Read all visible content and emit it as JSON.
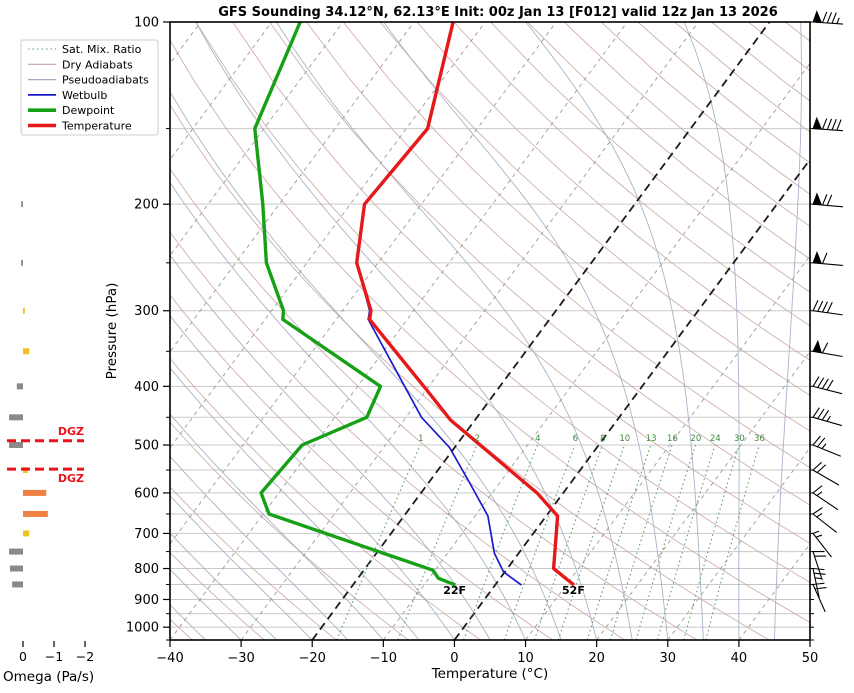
{
  "title": "GFS Sounding 34.12°N, 62.13°E Init: 00z Jan 13 [F012] valid 12z Jan 13 2026",
  "axes": {
    "x_label": "Temperature (°C)",
    "y_label": "Pressure (hPa)"
  },
  "legend": [
    {
      "label": "Sat. Mix. Ratio",
      "color": "#5a9c6e",
      "width": 1.1,
      "dash": "1.5 3"
    },
    {
      "label": "Dry Adiabats",
      "color": "#c9a0a0",
      "width": 1.2,
      "dash": ""
    },
    {
      "label": "Pseudoadiabats",
      "color": "#a3a8c4",
      "width": 1.2,
      "dash": ""
    },
    {
      "label": "Wetbulb",
      "color": "#1a1acd",
      "width": 1.7,
      "dash": ""
    },
    {
      "label": "Dewpoint",
      "color": "#15a015",
      "width": 3.6,
      "dash": ""
    },
    {
      "label": "Temperature",
      "color": "#e51919",
      "width": 3.6,
      "dash": ""
    }
  ],
  "chart_data": {
    "type": "line",
    "subtype": "skew-t-log-p sounding",
    "axes": {
      "t_min": -40,
      "t_max": 50,
      "t_tick_step": 10,
      "p_min": 100,
      "p_max": 1050,
      "skew": 0.74,
      "pressure_major_ticks": [
        100,
        200,
        300,
        400,
        500,
        600,
        700,
        800,
        900,
        1000
      ],
      "pressure_minor_ticks": [
        150,
        250,
        350,
        450,
        550,
        650,
        750,
        850,
        950,
        1050
      ],
      "temperature_ticks": [
        -40,
        -30,
        -20,
        -10,
        0,
        10,
        20,
        30,
        40,
        50
      ],
      "gridline_pressures": [
        150,
        200,
        250,
        300,
        350,
        400,
        450,
        500,
        550,
        600,
        650,
        700,
        750,
        800,
        850,
        900,
        950,
        1000
      ],
      "isotherms_c": {
        "from": -120,
        "to": 40,
        "step": 10,
        "bold": [
          0,
          -20
        ]
      },
      "dry_adiabats_theta_k": {
        "from": 233,
        "to": 503,
        "step": 10
      },
      "pseudoadiabats_start_c": {
        "from": -40,
        "to": 45,
        "step": 5
      },
      "mixing_ratio_lines_gkg": [
        1,
        2,
        4,
        6,
        8,
        10,
        13,
        16,
        20,
        24,
        30,
        36
      ],
      "mixing_ratio_top_hpa": 495
    },
    "series": [
      {
        "name": "Wetbulb",
        "color": "#1a1acd",
        "width": 1.7,
        "points": [
          [
            100,
            -64.5
          ],
          [
            150,
            -57
          ],
          [
            200,
            -58
          ],
          [
            250,
            -53
          ],
          [
            300,
            -46.2
          ],
          [
            310,
            -45.5
          ],
          [
            450,
            -27.8
          ],
          [
            505,
            -20.7
          ],
          [
            580,
            -14
          ],
          [
            655,
            -8.2
          ],
          [
            755,
            -3.4
          ],
          [
            810,
            -0.2
          ],
          [
            852,
            3.7
          ]
        ]
      },
      {
        "name": "Dewpoint",
        "color": "#15a015",
        "width": 3.4,
        "surface_label": "22F",
        "points": [
          [
            100,
            -86
          ],
          [
            150,
            -81.3
          ],
          [
            200,
            -72.3
          ],
          [
            250,
            -65.7
          ],
          [
            300,
            -58.3
          ],
          [
            310,
            -57.5
          ],
          [
            400,
            -36.8
          ],
          [
            450,
            -35.5
          ],
          [
            500,
            -41.7
          ],
          [
            600,
            -42.5
          ],
          [
            650,
            -39.2
          ],
          [
            805,
            -10.3
          ],
          [
            830,
            -8.7
          ],
          [
            852,
            -5.6
          ]
        ]
      },
      {
        "name": "Temperature",
        "color": "#e51919",
        "width": 3.4,
        "surface_label": "52F",
        "points": [
          [
            100,
            -64.5
          ],
          [
            150,
            -57
          ],
          [
            200,
            -58
          ],
          [
            250,
            -53
          ],
          [
            300,
            -46
          ],
          [
            310,
            -45.3
          ],
          [
            405,
            -30
          ],
          [
            455,
            -23.4
          ],
          [
            600,
            -3.7
          ],
          [
            655,
            1.6
          ],
          [
            800,
            6.5
          ],
          [
            852,
            11.1
          ]
        ]
      }
    ],
    "wind_barbs": [
      {
        "p": 100,
        "pennants": 1,
        "full": 3,
        "half": 1,
        "rot": 4
      },
      {
        "p": 150,
        "pennants": 1,
        "full": 4,
        "half": 0,
        "rot": 4
      },
      {
        "p": 200,
        "pennants": 1,
        "full": 2,
        "half": 0,
        "rot": 5
      },
      {
        "p": 250,
        "pennants": 1,
        "full": 1,
        "half": 0,
        "rot": 5
      },
      {
        "p": 300,
        "pennants": 0,
        "full": 4,
        "half": 0,
        "rot": 8
      },
      {
        "p": 350,
        "pennants": 1,
        "full": 1,
        "half": 0,
        "rot": 10
      },
      {
        "p": 400,
        "pennants": 0,
        "full": 4,
        "half": 0,
        "rot": 14
      },
      {
        "p": 450,
        "pennants": 0,
        "full": 3,
        "half": 1,
        "rot": 16
      },
      {
        "p": 500,
        "pennants": 0,
        "full": 2,
        "half": 1,
        "rot": 22
      },
      {
        "p": 550,
        "pennants": 0,
        "full": 2,
        "half": 0,
        "rot": 30
      },
      {
        "p": 600,
        "pennants": 0,
        "full": 1,
        "half": 1,
        "rot": 34
      },
      {
        "p": 650,
        "pennants": 0,
        "full": 1,
        "half": 1,
        "rot": 38
      },
      {
        "p": 700,
        "pennants": 0,
        "full": 0,
        "half": 2,
        "rot": 52
      },
      {
        "p": 750,
        "pennants": 0,
        "full": 2,
        "half": 0,
        "rot": 72
      },
      {
        "p": 800,
        "pennants": 0,
        "full": 2,
        "half": 1,
        "rot": 78
      },
      {
        "p": 850,
        "pennants": 0,
        "full": 2,
        "half": 0,
        "rot": 66
      }
    ],
    "omega": {
      "label": "Omega (Pa/s)",
      "axis_ticks": [
        0,
        -1,
        -2
      ],
      "bars": [
        {
          "p": 150,
          "v": 0.05,
          "c": "gray"
        },
        {
          "p": 200,
          "v": 0.05,
          "c": "gray"
        },
        {
          "p": 250,
          "v": 0.06,
          "c": "gray"
        },
        {
          "p": 300,
          "v": -0.06,
          "c": "yellow"
        },
        {
          "p": 350,
          "v": -0.2,
          "c": "yellow"
        },
        {
          "p": 400,
          "v": 0.2,
          "c": "gray"
        },
        {
          "p": 450,
          "v": 0.45,
          "c": "gray"
        },
        {
          "p": 500,
          "v": 0.45,
          "c": "gray"
        },
        {
          "p": 550,
          "v": -0.15,
          "c": "yellow"
        },
        {
          "p": 600,
          "v": -0.75,
          "c": "orange"
        },
        {
          "p": 650,
          "v": -0.8,
          "c": "orange"
        },
        {
          "p": 700,
          "v": -0.2,
          "c": "yellow"
        },
        {
          "p": 750,
          "v": 0.45,
          "c": "gray"
        },
        {
          "p": 800,
          "v": 0.42,
          "c": "gray"
        },
        {
          "p": 850,
          "v": 0.35,
          "c": "gray"
        }
      ],
      "dgz": {
        "label": "DGZ",
        "pressures": [
          492,
          548
        ]
      }
    }
  }
}
